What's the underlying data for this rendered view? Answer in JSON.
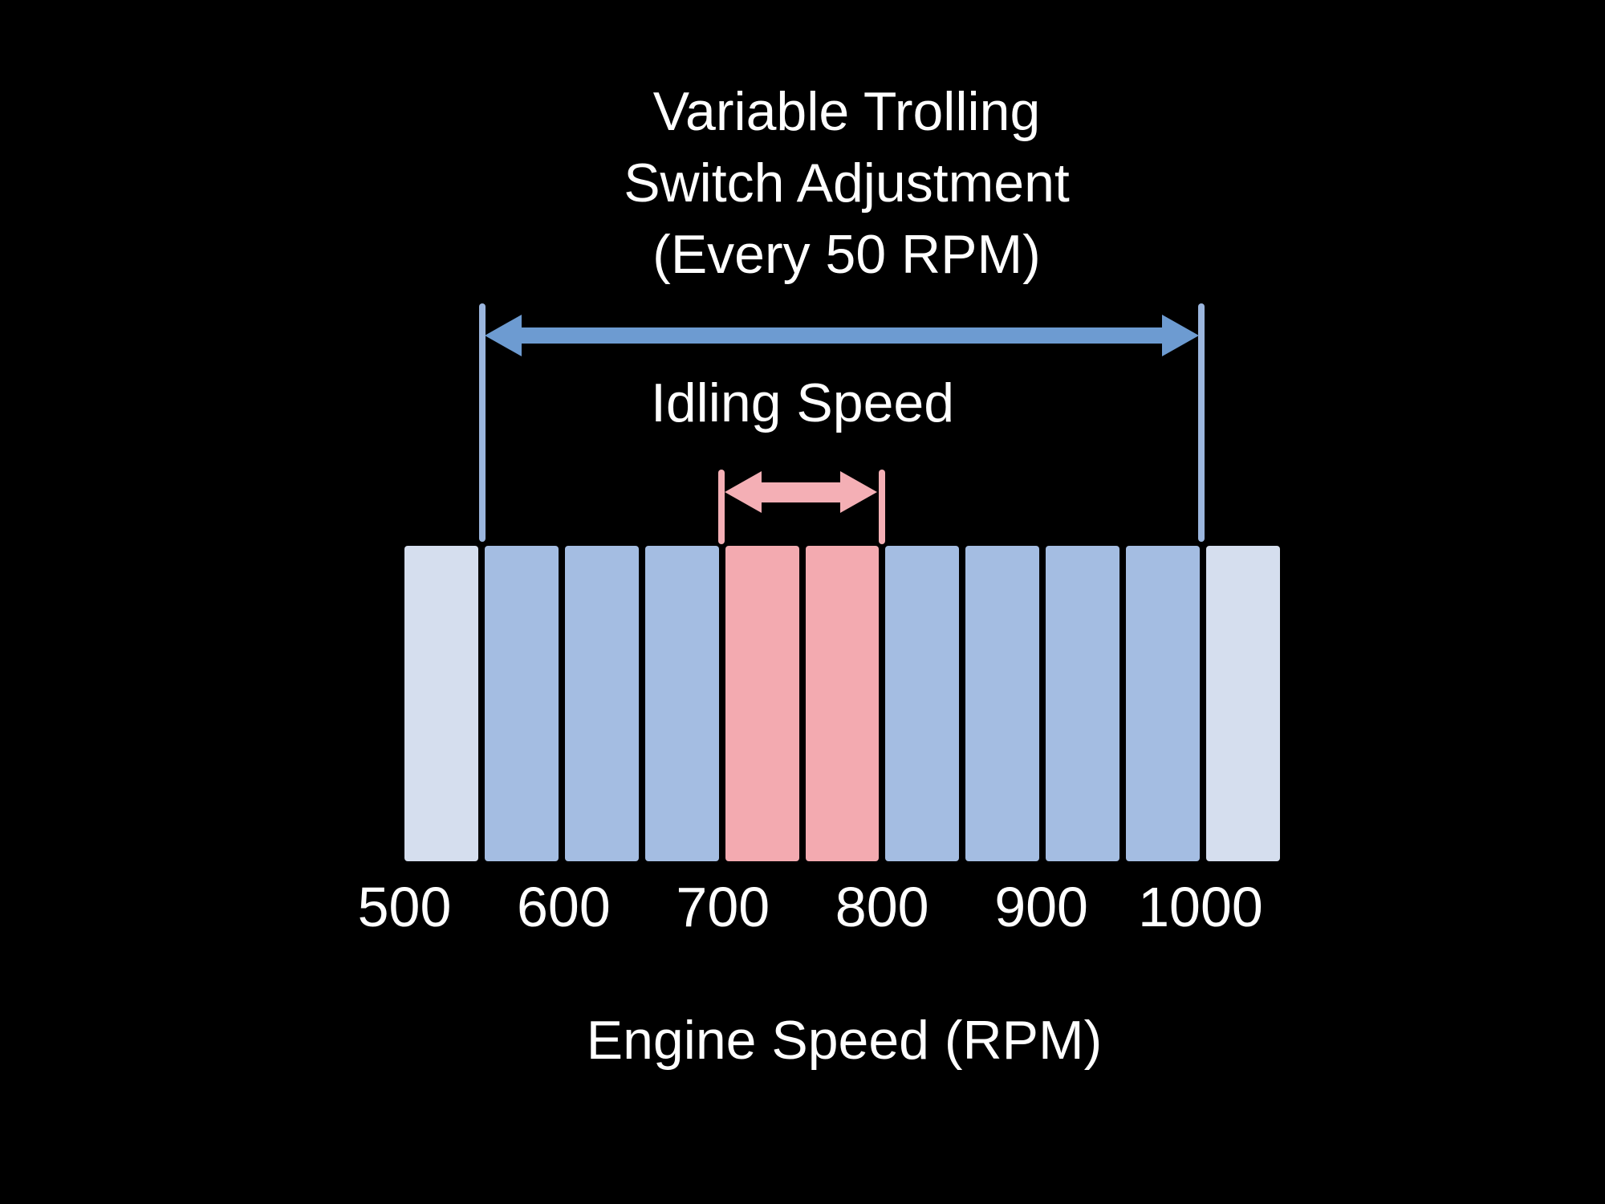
{
  "figure": {
    "title_lines": [
      "Variable Trolling",
      "Switch Adjustment",
      "(Every 50 RPM)"
    ],
    "idling_label": "Idling Speed",
    "xlabel": "Engine Speed (RPM)"
  },
  "colors": {
    "background": "#000000",
    "text": "#ffffff",
    "arrow_blue": "#6d9bd1",
    "range_line_blue": "#9bb6de",
    "pink": "#f4afb5",
    "bar_blue": "#a4bde2",
    "bar_pale": "#d5deee",
    "bar_pink": "#f3aab0"
  },
  "chart_data": {
    "type": "bar",
    "title": "Variable Trolling Switch Adjustment (Every 50 RPM)",
    "xlabel": "Engine Speed (RPM)",
    "x_unit": "RPM",
    "x_ticks": [
      500,
      600,
      700,
      800,
      900,
      1000
    ],
    "x_range": [
      500,
      1050
    ],
    "bar_width_rpm": 50,
    "grid": false,
    "legend": false,
    "bars": [
      {
        "start": 500,
        "end": 550,
        "zone": "outside-adjustment-range",
        "color": "#d5deee"
      },
      {
        "start": 550,
        "end": 600,
        "zone": "trolling-adjustment",
        "color": "#a4bde2"
      },
      {
        "start": 600,
        "end": 650,
        "zone": "trolling-adjustment",
        "color": "#a4bde2"
      },
      {
        "start": 650,
        "end": 700,
        "zone": "trolling-adjustment",
        "color": "#a4bde2"
      },
      {
        "start": 700,
        "end": 750,
        "zone": "idling-speed",
        "color": "#f3aab0"
      },
      {
        "start": 750,
        "end": 800,
        "zone": "idling-speed",
        "color": "#f3aab0"
      },
      {
        "start": 800,
        "end": 850,
        "zone": "trolling-adjustment",
        "color": "#a4bde2"
      },
      {
        "start": 850,
        "end": 900,
        "zone": "trolling-adjustment",
        "color": "#a4bde2"
      },
      {
        "start": 900,
        "end": 950,
        "zone": "trolling-adjustment",
        "color": "#a4bde2"
      },
      {
        "start": 950,
        "end": 1000,
        "zone": "trolling-adjustment",
        "color": "#a4bde2"
      },
      {
        "start": 1000,
        "end": 1050,
        "zone": "outside-adjustment-range",
        "color": "#d5deee"
      }
    ],
    "annotations": [
      {
        "label": "Variable Trolling Switch Adjustment (Every 50 RPM)",
        "start": 550,
        "end": 1000,
        "style": "double-headed-arrow",
        "color": "#6d9bd1"
      },
      {
        "label": "Idling Speed",
        "start": 700,
        "end": 800,
        "style": "double-headed-arrow",
        "color": "#f4afb5"
      }
    ]
  }
}
